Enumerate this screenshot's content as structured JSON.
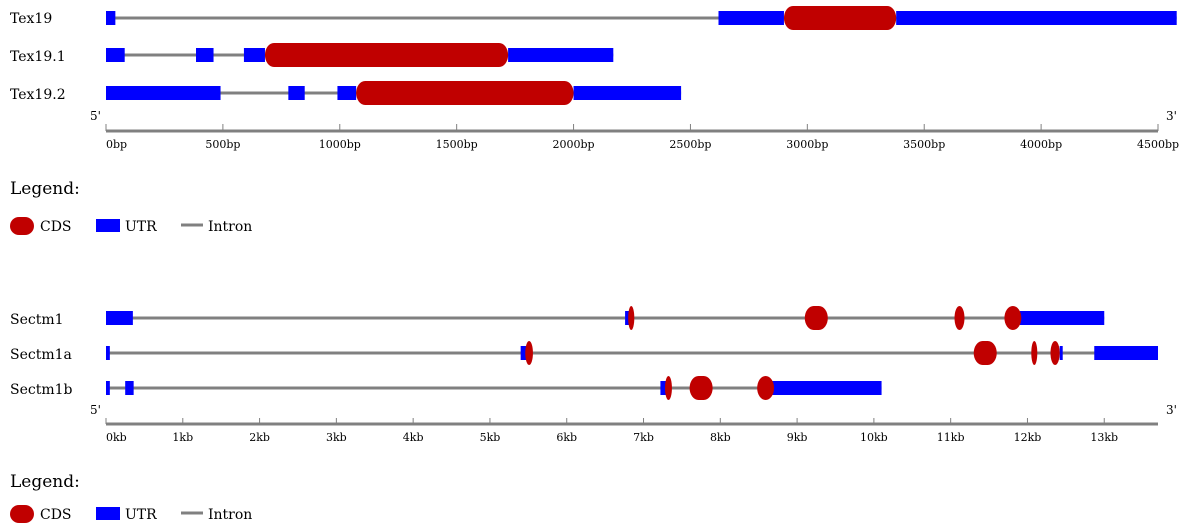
{
  "colors": {
    "cds": "#c00000",
    "utr": "#0000ff",
    "intron": "#808080",
    "axis": "#808080"
  },
  "panels": [
    {
      "id": "tex19",
      "axis": {
        "max": 4500,
        "ticks": [
          0,
          500,
          1000,
          1500,
          2000,
          2500,
          3000,
          3500,
          4000,
          4500
        ],
        "tick_labels": [
          "0bp",
          "500bp",
          "1000bp",
          "1500bp",
          "2000bp",
          "2500bp",
          "3000bp",
          "3500bp",
          "4000bp",
          "4500bp"
        ],
        "five_prime": "5'",
        "three_prime": "3'"
      },
      "tracks": [
        {
          "name": "Tex19",
          "intron": [
            0,
            4580
          ],
          "utr": [
            [
              0,
              40
            ],
            [
              2620,
              2900
            ],
            [
              3380,
              4580
            ]
          ],
          "cds": [
            [
              2900,
              3380
            ]
          ]
        },
        {
          "name": "Tex19.1",
          "intron": [
            0,
            2170
          ],
          "utr": [
            [
              0,
              80
            ],
            [
              385,
              460
            ],
            [
              590,
              680
            ],
            [
              1720,
              2170
            ]
          ],
          "cds": [
            [
              680,
              1720
            ]
          ]
        },
        {
          "name": "Tex19.2",
          "intron": [
            0,
            2460
          ],
          "utr": [
            [
              0,
              490
            ],
            [
              780,
              850
            ],
            [
              990,
              1070
            ],
            [
              2000,
              2460
            ]
          ],
          "cds": [
            [
              1070,
              2000
            ]
          ]
        }
      ]
    },
    {
      "id": "sectm1",
      "axis": {
        "max": 13.7,
        "ticks": [
          0,
          1,
          2,
          3,
          4,
          5,
          6,
          7,
          8,
          9,
          10,
          11,
          12,
          13
        ],
        "tick_labels": [
          "0kb",
          "1kb",
          "2kb",
          "3kb",
          "4kb",
          "5kb",
          "6kb",
          "7kb",
          "8kb",
          "9kb",
          "10kb",
          "11kb",
          "12kb",
          "13kb"
        ],
        "five_prime": "5'",
        "three_prime": "3'"
      },
      "tracks": [
        {
          "name": "Sectm1",
          "intron": [
            0,
            13.0
          ],
          "utr": [
            [
              0,
              0.35
            ],
            [
              6.76,
              6.84
            ],
            [
              11.9,
              13.0
            ]
          ],
          "cds": [
            [
              6.8,
              6.88
            ],
            [
              9.1,
              9.4
            ],
            [
              11.05,
              11.18
            ],
            [
              11.7,
              11.92
            ]
          ]
        },
        {
          "name": "Sectm1a",
          "intron": [
            0,
            13.7
          ],
          "utr": [
            [
              0,
              0.05
            ],
            [
              5.4,
              5.47
            ],
            [
              12.42,
              12.45
            ],
            [
              12.87,
              13.7
            ]
          ],
          "cds": [
            [
              5.46,
              5.56
            ],
            [
              11.3,
              11.6
            ],
            [
              12.05,
              12.1
            ],
            [
              12.3,
              12.42
            ]
          ]
        },
        {
          "name": "Sectm1b",
          "intron": [
            0,
            10.1
          ],
          "utr": [
            [
              0,
              0.05
            ],
            [
              0.25,
              0.36
            ],
            [
              7.22,
              7.3
            ],
            [
              8.65,
              10.1
            ]
          ],
          "cds": [
            [
              7.28,
              7.37
            ],
            [
              7.6,
              7.9
            ],
            [
              8.48,
              8.7
            ]
          ]
        }
      ]
    }
  ],
  "legends": [
    {
      "title": "Legend:",
      "cds": "CDS",
      "utr": "UTR",
      "intron": "Intron"
    },
    {
      "title": "Legend:",
      "cds": "CDS",
      "utr": "UTR",
      "intron": "Intron"
    }
  ]
}
